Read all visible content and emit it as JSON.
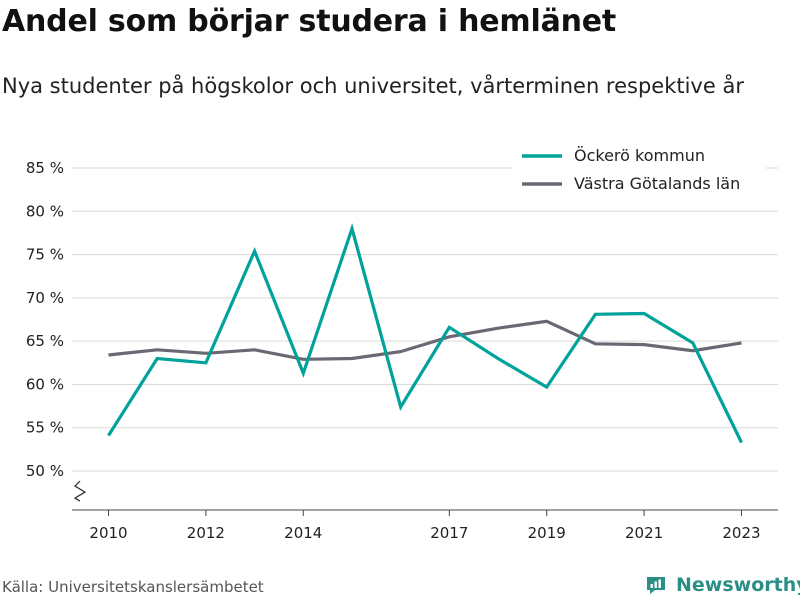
{
  "title": "Andel som börjar studera i hemlänet",
  "subtitle": "Nya studenter på högskolor och universitet, vårterminen respektive år",
  "source": "Källa: Universitetskanslersämbetet",
  "brand": {
    "name": "Newsworthy",
    "icon": "newsworthy-logo-icon",
    "color": "#2a8f86"
  },
  "chart_data": {
    "type": "line",
    "x": [
      2010,
      2011,
      2012,
      2013,
      2014,
      2015,
      2016,
      2017,
      2018,
      2019,
      2020,
      2021,
      2022,
      2023
    ],
    "x_tick_labels": [
      "2010",
      "2012",
      "2014",
      "2017",
      "2019",
      "2021",
      "2023"
    ],
    "y_ticks": [
      50,
      55,
      60,
      65,
      70,
      75,
      80,
      85
    ],
    "y_tick_labels": [
      "50 %",
      "55 %",
      "60 %",
      "65 %",
      "70 %",
      "75 %",
      "80 %",
      "85 %"
    ],
    "ylim": [
      45.5,
      85
    ],
    "y_axis_break": true,
    "grid": true,
    "legend_position": "top-right",
    "series": [
      {
        "name": "Öckerö kommun",
        "color": "#00a29a",
        "values": [
          54.1,
          63.0,
          62.5,
          75.4,
          61.3,
          78.0,
          57.4,
          66.6,
          63.0,
          59.7,
          68.1,
          68.2,
          64.8,
          53.3
        ]
      },
      {
        "name": "Västra Götalands län",
        "color": "#6b6874",
        "values": [
          63.4,
          64.0,
          63.6,
          64.0,
          62.9,
          63.0,
          63.8,
          65.5,
          66.5,
          67.3,
          64.7,
          64.6,
          63.9,
          64.8
        ]
      }
    ]
  }
}
